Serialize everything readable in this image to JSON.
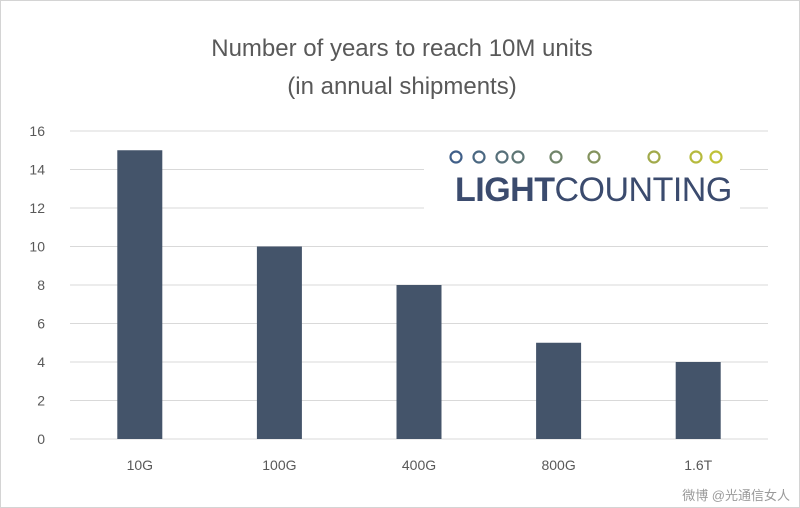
{
  "chart_data": {
    "type": "bar",
    "title_line1": "Number of years to reach 10M units",
    "title_line2": "(in annual shipments)",
    "categories": [
      "10G",
      "100G",
      "400G",
      "800G",
      "1.6T"
    ],
    "values": [
      15,
      10,
      8,
      5,
      4
    ],
    "ylim": [
      0,
      16
    ],
    "yticks": [
      0,
      2,
      4,
      6,
      8,
      10,
      12,
      14,
      16
    ],
    "grid": true,
    "bar_color": "#44546a",
    "xlabel": "",
    "ylabel": ""
  },
  "logo": {
    "text_bold": "LIGHT",
    "text_regular": "COUNTING",
    "text_color": "#3b4b6e",
    "line_color_start": "#3b5b8c",
    "line_color_end": "#c8c832"
  },
  "watermark": {
    "text": "微博 @光通信女人"
  }
}
